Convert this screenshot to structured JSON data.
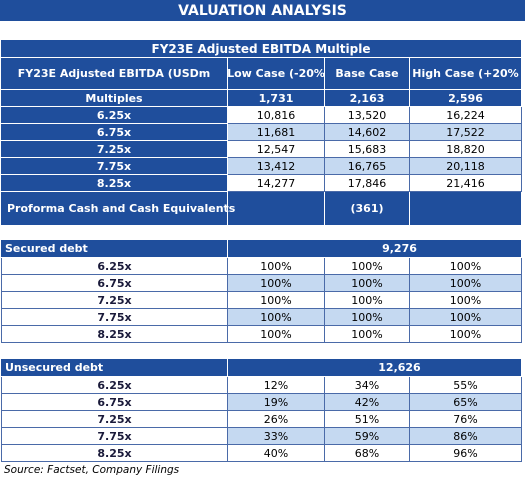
{
  "title": "VALUATION ANALYSIS",
  "ebitda_table": {
    "title": "FY23E Adjusted EBITDA Multiple",
    "header": [
      "FY23E Adjusted EBITDA (USDm",
      "Low Case (-20%",
      "Base Case",
      "High Case (+20%"
    ],
    "multiples_row": [
      "Multiples",
      "1,731",
      "2,163",
      "2,596"
    ],
    "rows": [
      [
        "6.25x",
        "10,816",
        "13,520",
        "16,224"
      ],
      [
        "6.75x",
        "11,681",
        "14,602",
        "17,522"
      ],
      [
        "7.25x",
        "12,547",
        "15,683",
        "18,820"
      ],
      [
        "7.75x",
        "13,412",
        "16,765",
        "20,118"
      ],
      [
        "8.25x",
        "14,277",
        "17,846",
        "21,416"
      ]
    ],
    "proforma": {
      "label": "Proforma Cash and Cash Equivalents",
      "value": "(361)"
    }
  },
  "secured_debt": {
    "label": "Secured debt",
    "value": "9,276",
    "rows": [
      [
        "6.25x",
        "100%",
        "100%",
        "100%"
      ],
      [
        "6.75x",
        "100%",
        "100%",
        "100%"
      ],
      [
        "7.25x",
        "100%",
        "100%",
        "100%"
      ],
      [
        "7.75x",
        "100%",
        "100%",
        "100%"
      ],
      [
        "8.25x",
        "100%",
        "100%",
        "100%"
      ]
    ]
  },
  "unsecured_debt": {
    "label": "Unsecured debt",
    "value": "12,626",
    "rows": [
      [
        "6.25x",
        "12%",
        "34%",
        "55%"
      ],
      [
        "6.75x",
        "19%",
        "42%",
        "65%"
      ],
      [
        "7.25x",
        "26%",
        "51%",
        "76%"
      ],
      [
        "7.75x",
        "33%",
        "59%",
        "86%"
      ],
      [
        "8.25x",
        "40%",
        "68%",
        "96%"
      ]
    ]
  },
  "source": "Source: Factset, Company Filings"
}
